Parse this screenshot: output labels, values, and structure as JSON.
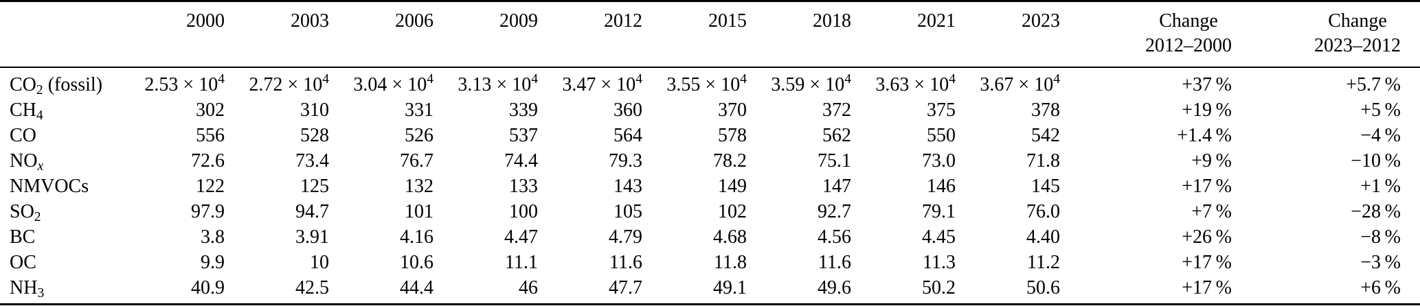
{
  "table": {
    "headers": [
      "",
      "2000",
      "2003",
      "2006",
      "2009",
      "2012",
      "2015",
      "2018",
      "2021",
      "2023",
      "Change\n2012–2000",
      "Change\n2023–2012"
    ],
    "rows": [
      {
        "cells": [
          "CO_{2} (fossil)",
          "2.53 × 10^{4}",
          "2.72 × 10^{4}",
          "3.04 × 10^{4}",
          "3.13 × 10^{4}",
          "3.47 × 10^{4}",
          "3.55 × 10^{4}",
          "3.59 × 10^{4}",
          "3.63 × 10^{4}",
          "3.67 × 10^{4}",
          "+37 %",
          "+5.7 %"
        ]
      },
      {
        "cells": [
          "CH_{4}",
          "302",
          "310",
          "331",
          "339",
          "360",
          "370",
          "372",
          "375",
          "378",
          "+19 %",
          "+5 %"
        ]
      },
      {
        "cells": [
          "CO",
          "556",
          "528",
          "526",
          "537",
          "564",
          "578",
          "562",
          "550",
          "542",
          "+1.4 %",
          "−4 %"
        ]
      },
      {
        "cells": [
          "NO_{/{x}}",
          "72.6",
          "73.4",
          "76.7",
          "74.4",
          "79.3",
          "78.2",
          "75.1",
          "73.0",
          "71.8",
          "+9 %",
          "−10 %"
        ]
      },
      {
        "cells": [
          "NMVOCs",
          "122",
          "125",
          "132",
          "133",
          "143",
          "149",
          "147",
          "146",
          "145",
          "+17 %",
          "+1 %"
        ]
      },
      {
        "cells": [
          "SO_{2}",
          "97.9",
          "94.7",
          "101",
          "100",
          "105",
          "102",
          "92.7",
          "79.1",
          "76.0",
          "+7 %",
          "−28 %"
        ]
      },
      {
        "cells": [
          "BC",
          "3.8",
          "3.91",
          "4.16",
          "4.47",
          "4.79",
          "4.68",
          "4.56",
          "4.45",
          "4.40",
          "+26 %",
          "−8 %"
        ]
      },
      {
        "cells": [
          "OC",
          "9.9",
          "10",
          "10.6",
          "11.1",
          "11.6",
          "11.8",
          "11.6",
          "11.3",
          "11.2",
          "+17 %",
          "−3 %"
        ]
      },
      {
        "cells": [
          "NH_{3}",
          "40.9",
          "42.5",
          "44.4",
          "46",
          "47.7",
          "49.1",
          "49.6",
          "50.2",
          "50.6",
          "+17 %",
          "+6 %"
        ]
      }
    ]
  }
}
